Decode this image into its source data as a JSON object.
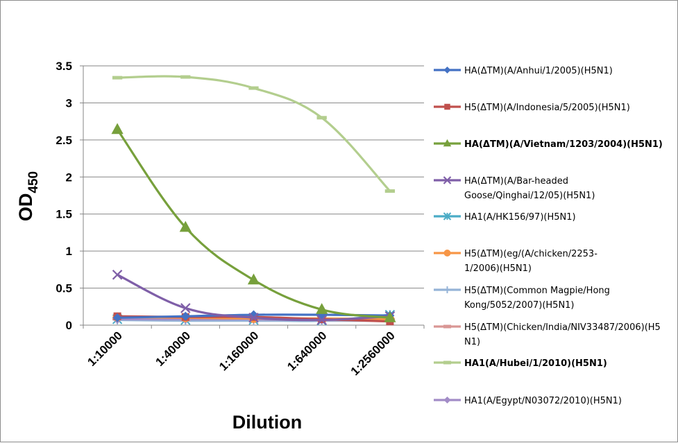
{
  "chart_data": {
    "type": "line",
    "title": "",
    "xlabel": "Dilution",
    "ylabel": {
      "main": "OD",
      "subscript": "450"
    },
    "categories": [
      "1:10000",
      "1:40000",
      "1:160000",
      "1:640000",
      "1:2560000"
    ],
    "ylim": [
      0,
      3.5
    ],
    "yticks": [
      "0",
      "0.5",
      "1",
      "1.5",
      "2",
      "2.5",
      "3",
      "3.5"
    ],
    "grid": "horizontal",
    "legend_position": "right",
    "series": [
      {
        "name_lines": [
          "HA(ΔTM)(A/Anhui/1/2005)(H5N1)"
        ],
        "bold": false,
        "color": "#4472C4",
        "marker": "diamond",
        "values": [
          0.1,
          0.12,
          0.14,
          0.14,
          0.13
        ]
      },
      {
        "name_lines": [
          "H5(ΔTM)(A/Indonesia/5/2005)(H5N1)"
        ],
        "bold": false,
        "color": "#C0504D",
        "marker": "square",
        "values": [
          0.12,
          0.11,
          0.11,
          0.08,
          0.05
        ]
      },
      {
        "name_lines": [
          "HA(ΔTM)(A/Vietnam/1203/2004)(H5N1)"
        ],
        "bold": true,
        "color": "#77A03C",
        "marker": "triangle",
        "values": [
          2.64,
          1.32,
          0.61,
          0.21,
          0.1
        ]
      },
      {
        "name_lines": [
          "HA(ΔTM)(A/Bar-headed",
          "Goose/Qinghai/12/05)(H5N1)"
        ],
        "bold": false,
        "color": "#7F5FA8",
        "marker": "x",
        "values": [
          0.68,
          0.23,
          0.1,
          0.07,
          0.12
        ]
      },
      {
        "name_lines": [
          "HA1(A/HK156/97)(H5N1)"
        ],
        "bold": false,
        "color": "#4BACC6",
        "marker": "star",
        "values": [
          0.08,
          0.07,
          0.07,
          0.06,
          0.14
        ]
      },
      {
        "name_lines": [
          "H5(ΔTM)(eg/(A/chicken/2253-",
          "1/2006)(H5N1)"
        ],
        "bold": false,
        "color": "#F79646",
        "marker": "circle",
        "values": [
          0.11,
          0.1,
          0.09,
          0.09,
          0.08
        ]
      },
      {
        "name_lines": [
          "H5(ΔTM)(Common Magpie/Hong",
          "Kong/5052/2007)(H5N1)"
        ],
        "bold": false,
        "color": "#95B3D7",
        "marker": "plus",
        "values": [
          0.07,
          0.06,
          0.06,
          0.06,
          0.06
        ]
      },
      {
        "name_lines": [
          "H5(ΔTM)(Chicken/India/NIV33487/2006)(H5",
          "N1)"
        ],
        "bold": false,
        "color": "#D99694",
        "marker": "dash",
        "values": [
          0.09,
          0.08,
          0.08,
          0.07,
          0.07
        ]
      },
      {
        "name_lines": [
          "HA1(A/Hubei/1/2010)(H5N1)"
        ],
        "bold": true,
        "color": "#B3CE8E",
        "marker": "dash",
        "values": [
          3.34,
          3.35,
          3.2,
          2.8,
          1.81
        ]
      },
      {
        "name_lines": [
          "HA1(A/Egypt/N03072/2010)(H5N1)"
        ],
        "bold": false,
        "color": "#A28CC7",
        "marker": "diamond",
        "values": [
          0.08,
          0.08,
          0.08,
          0.07,
          0.09
        ]
      }
    ]
  }
}
